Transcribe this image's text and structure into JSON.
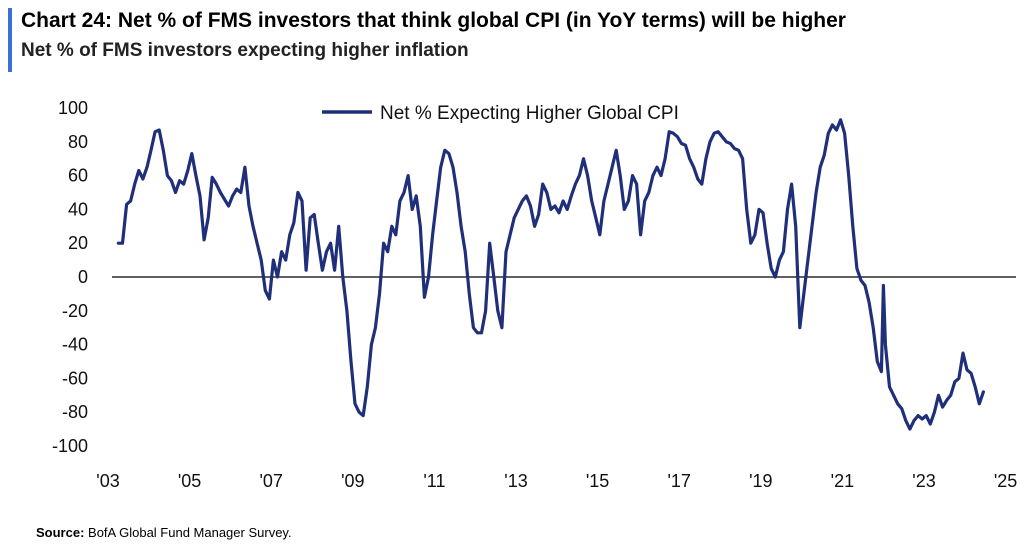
{
  "header": {
    "title": "Chart 24: Net % of FMS investors that think global CPI (in YoY terms) will be higher",
    "subtitle": "Net % of FMS investors expecting higher inflation"
  },
  "footer": {
    "source_label": "Source:",
    "source_text": "BofA Global Fund Manager Survey."
  },
  "colors": {
    "accent": "#3a6fd8",
    "series": "#1f2f7a",
    "zero_line": "#000000"
  },
  "chart_data": {
    "type": "line",
    "ylim": [
      -100,
      100
    ],
    "xlim": [
      2003.0,
      2025.5
    ],
    "y_ticks": [
      100,
      80,
      60,
      40,
      20,
      0,
      -20,
      -40,
      -60,
      -80,
      -100
    ],
    "x_ticks": [
      {
        "value": 2003,
        "label": "'03"
      },
      {
        "value": 2005,
        "label": "'05"
      },
      {
        "value": 2007,
        "label": "'07"
      },
      {
        "value": 2009,
        "label": "'09"
      },
      {
        "value": 2011,
        "label": "'11"
      },
      {
        "value": 2013,
        "label": "'13"
      },
      {
        "value": 2015,
        "label": "'15"
      },
      {
        "value": 2017,
        "label": "'17"
      },
      {
        "value": 2019,
        "label": "'19"
      },
      {
        "value": 2021,
        "label": "'21"
      },
      {
        "value": 2023,
        "label": "'23"
      },
      {
        "value": 2025,
        "label": "'25"
      }
    ],
    "legend_position": "top-center",
    "series": [
      {
        "name": "Net % Expecting Higher Global CPI",
        "points": [
          [
            2003.5,
            20
          ],
          [
            2003.6,
            20
          ],
          [
            2003.7,
            43
          ],
          [
            2003.8,
            45
          ],
          [
            2003.9,
            55
          ],
          [
            2004.0,
            63
          ],
          [
            2004.1,
            58
          ],
          [
            2004.2,
            65
          ],
          [
            2004.3,
            75
          ],
          [
            2004.4,
            86
          ],
          [
            2004.5,
            87
          ],
          [
            2004.6,
            75
          ],
          [
            2004.7,
            60
          ],
          [
            2004.8,
            57
          ],
          [
            2004.9,
            50
          ],
          [
            2005.0,
            57
          ],
          [
            2005.1,
            55
          ],
          [
            2005.2,
            63
          ],
          [
            2005.3,
            73
          ],
          [
            2005.4,
            60
          ],
          [
            2005.5,
            48
          ],
          [
            2005.6,
            22
          ],
          [
            2005.7,
            35
          ],
          [
            2005.8,
            59
          ],
          [
            2005.9,
            55
          ],
          [
            2006.0,
            50
          ],
          [
            2006.1,
            46
          ],
          [
            2006.2,
            42
          ],
          [
            2006.3,
            48
          ],
          [
            2006.4,
            52
          ],
          [
            2006.5,
            50
          ],
          [
            2006.6,
            65
          ],
          [
            2006.7,
            42
          ],
          [
            2006.8,
            30
          ],
          [
            2006.9,
            20
          ],
          [
            2007.0,
            10
          ],
          [
            2007.1,
            -8
          ],
          [
            2007.2,
            -13
          ],
          [
            2007.3,
            10
          ],
          [
            2007.4,
            0
          ],
          [
            2007.5,
            15
          ],
          [
            2007.6,
            10
          ],
          [
            2007.7,
            25
          ],
          [
            2007.8,
            32
          ],
          [
            2007.9,
            50
          ],
          [
            2008.0,
            45
          ],
          [
            2008.1,
            4
          ],
          [
            2008.2,
            35
          ],
          [
            2008.3,
            37
          ],
          [
            2008.4,
            20
          ],
          [
            2008.5,
            4
          ],
          [
            2008.6,
            15
          ],
          [
            2008.7,
            20
          ],
          [
            2008.8,
            4
          ],
          [
            2008.9,
            30
          ],
          [
            2009.0,
            0
          ],
          [
            2009.1,
            -20
          ],
          [
            2009.2,
            -50
          ],
          [
            2009.3,
            -75
          ],
          [
            2009.4,
            -80
          ],
          [
            2009.5,
            -82
          ],
          [
            2009.6,
            -65
          ],
          [
            2009.7,
            -40
          ],
          [
            2009.8,
            -30
          ],
          [
            2009.9,
            -10
          ],
          [
            2010.0,
            20
          ],
          [
            2010.1,
            15
          ],
          [
            2010.2,
            30
          ],
          [
            2010.3,
            25
          ],
          [
            2010.4,
            45
          ],
          [
            2010.5,
            50
          ],
          [
            2010.6,
            60
          ],
          [
            2010.7,
            40
          ],
          [
            2010.8,
            48
          ],
          [
            2010.9,
            30
          ],
          [
            2011.0,
            -12
          ],
          [
            2011.1,
            0
          ],
          [
            2011.2,
            25
          ],
          [
            2011.3,
            45
          ],
          [
            2011.4,
            65
          ],
          [
            2011.5,
            75
          ],
          [
            2011.6,
            73
          ],
          [
            2011.7,
            65
          ],
          [
            2011.8,
            50
          ],
          [
            2011.9,
            30
          ],
          [
            2012.0,
            15
          ],
          [
            2012.1,
            -10
          ],
          [
            2012.2,
            -30
          ],
          [
            2012.3,
            -33
          ],
          [
            2012.4,
            -33
          ],
          [
            2012.5,
            -20
          ],
          [
            2012.6,
            20
          ],
          [
            2012.7,
            0
          ],
          [
            2012.8,
            -20
          ],
          [
            2012.9,
            -30
          ],
          [
            2013.0,
            15
          ],
          [
            2013.1,
            25
          ],
          [
            2013.2,
            35
          ],
          [
            2013.3,
            40
          ],
          [
            2013.4,
            45
          ],
          [
            2013.5,
            48
          ],
          [
            2013.6,
            42
          ],
          [
            2013.7,
            30
          ],
          [
            2013.8,
            37
          ],
          [
            2013.9,
            55
          ],
          [
            2014.0,
            50
          ],
          [
            2014.1,
            40
          ],
          [
            2014.2,
            42
          ],
          [
            2014.3,
            38
          ],
          [
            2014.4,
            45
          ],
          [
            2014.5,
            40
          ],
          [
            2014.6,
            48
          ],
          [
            2014.7,
            55
          ],
          [
            2014.8,
            60
          ],
          [
            2014.9,
            70
          ],
          [
            2015.0,
            60
          ],
          [
            2015.1,
            45
          ],
          [
            2015.2,
            35
          ],
          [
            2015.3,
            25
          ],
          [
            2015.4,
            45
          ],
          [
            2015.5,
            55
          ],
          [
            2015.6,
            65
          ],
          [
            2015.7,
            75
          ],
          [
            2015.8,
            60
          ],
          [
            2015.9,
            40
          ],
          [
            2016.0,
            45
          ],
          [
            2016.1,
            60
          ],
          [
            2016.2,
            55
          ],
          [
            2016.3,
            25
          ],
          [
            2016.4,
            45
          ],
          [
            2016.5,
            50
          ],
          [
            2016.6,
            60
          ],
          [
            2016.7,
            65
          ],
          [
            2016.8,
            60
          ],
          [
            2016.9,
            70
          ],
          [
            2017.0,
            86
          ],
          [
            2017.1,
            85
          ],
          [
            2017.2,
            83
          ],
          [
            2017.3,
            79
          ],
          [
            2017.4,
            78
          ],
          [
            2017.5,
            70
          ],
          [
            2017.6,
            65
          ],
          [
            2017.7,
            58
          ],
          [
            2017.8,
            55
          ],
          [
            2017.9,
            70
          ],
          [
            2018.0,
            80
          ],
          [
            2018.1,
            85
          ],
          [
            2018.2,
            86
          ],
          [
            2018.3,
            83
          ],
          [
            2018.4,
            80
          ],
          [
            2018.5,
            79
          ],
          [
            2018.6,
            76
          ],
          [
            2018.7,
            75
          ],
          [
            2018.8,
            70
          ],
          [
            2018.9,
            40
          ],
          [
            2019.0,
            20
          ],
          [
            2019.1,
            25
          ],
          [
            2019.2,
            40
          ],
          [
            2019.3,
            38
          ],
          [
            2019.4,
            20
          ],
          [
            2019.5,
            5
          ],
          [
            2019.6,
            0
          ],
          [
            2019.7,
            10
          ],
          [
            2019.8,
            15
          ],
          [
            2019.9,
            40
          ],
          [
            2020.0,
            55
          ],
          [
            2020.1,
            30
          ],
          [
            2020.2,
            -30
          ],
          [
            2020.3,
            -10
          ],
          [
            2020.4,
            10
          ],
          [
            2020.5,
            30
          ],
          [
            2020.6,
            50
          ],
          [
            2020.7,
            65
          ],
          [
            2020.8,
            72
          ],
          [
            2020.9,
            85
          ],
          [
            2021.0,
            90
          ],
          [
            2021.1,
            87
          ],
          [
            2021.2,
            93
          ],
          [
            2021.3,
            85
          ],
          [
            2021.4,
            60
          ],
          [
            2021.5,
            30
          ],
          [
            2021.6,
            5
          ],
          [
            2021.7,
            -2
          ],
          [
            2021.8,
            -5
          ],
          [
            2021.9,
            -15
          ],
          [
            2022.0,
            -30
          ],
          [
            2022.1,
            -50
          ],
          [
            2022.2,
            -56
          ],
          [
            2022.25,
            -5
          ],
          [
            2022.3,
            -40
          ],
          [
            2022.4,
            -65
          ],
          [
            2022.5,
            -70
          ],
          [
            2022.6,
            -75
          ],
          [
            2022.7,
            -78
          ],
          [
            2022.8,
            -85
          ],
          [
            2022.9,
            -90
          ],
          [
            2023.0,
            -85
          ],
          [
            2023.1,
            -82
          ],
          [
            2023.2,
            -84
          ],
          [
            2023.3,
            -82
          ],
          [
            2023.4,
            -87
          ],
          [
            2023.5,
            -80
          ],
          [
            2023.6,
            -70
          ],
          [
            2023.7,
            -77
          ],
          [
            2023.8,
            -73
          ],
          [
            2023.9,
            -70
          ],
          [
            2024.0,
            -62
          ],
          [
            2024.1,
            -60
          ],
          [
            2024.2,
            -45
          ],
          [
            2024.3,
            -55
          ],
          [
            2024.4,
            -57
          ],
          [
            2024.5,
            -65
          ],
          [
            2024.6,
            -75
          ],
          [
            2024.7,
            -68
          ]
        ]
      }
    ]
  }
}
